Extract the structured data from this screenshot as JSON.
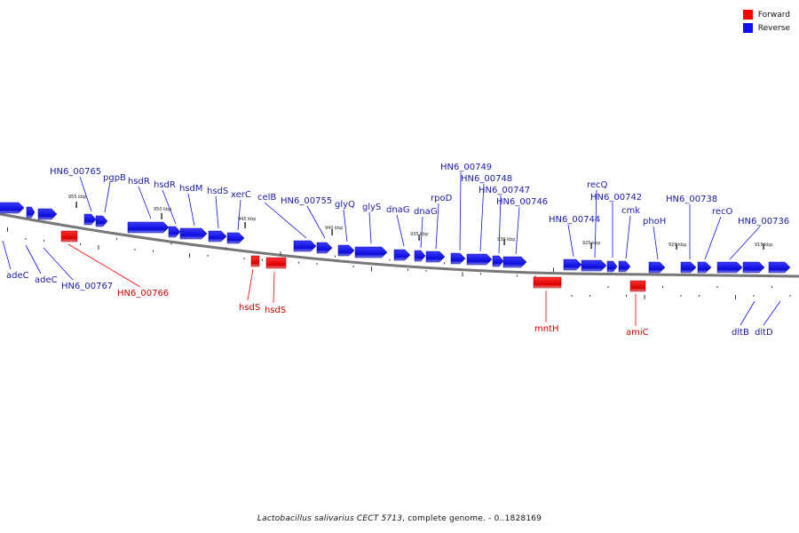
{
  "colors": {
    "forward": "#ff0000",
    "reverse": "#1010ee",
    "backbone": "#777777",
    "forward_label": "#cc0000",
    "reverse_label": "#1a1aa0"
  },
  "legend": {
    "forward": "Forward",
    "reverse": "Reverse"
  },
  "caption": {
    "organism": "Lactobacillus salivarius CECT 5713",
    "rest": ", complete genome. - 0..1828169"
  },
  "ticks": [
    "955 kbp",
    "950 kbp",
    "945 kbp",
    "940 kbp",
    "935 kbp",
    "930 kbp",
    "925 kbp",
    "920 kbp",
    "915 kbp"
  ],
  "reverse_labels": [
    "HN6_00765",
    "pgpB",
    "hsdR",
    "hsdR",
    "hsdM",
    "hsdS",
    "xerC",
    "celB",
    "HN6_00755",
    "glyQ",
    "glyS",
    "dnaG",
    "dnaG",
    "rpoD",
    "HN6_00749",
    "HN6_00748",
    "HN6_00747",
    "HN6_00746",
    "recQ",
    "HN6_00742",
    "HN6_00744",
    "cmk",
    "phoH",
    "HN6_00738",
    "recO",
    "HN6_00736"
  ],
  "lower_labels": [
    {
      "text": "adeC",
      "strand": "reverse"
    },
    {
      "text": "adeC",
      "strand": "reverse"
    },
    {
      "text": "HN6_00767",
      "strand": "reverse"
    },
    {
      "text": "HN6_00766",
      "strand": "forward"
    },
    {
      "text": "hsdS",
      "strand": "forward"
    },
    {
      "text": "hsdS",
      "strand": "forward"
    },
    {
      "text": "mntH",
      "strand": "forward"
    },
    {
      "text": "amiC",
      "strand": "forward"
    },
    {
      "text": "dltB",
      "strand": "reverse"
    },
    {
      "text": "dltD",
      "strand": "reverse"
    }
  ]
}
